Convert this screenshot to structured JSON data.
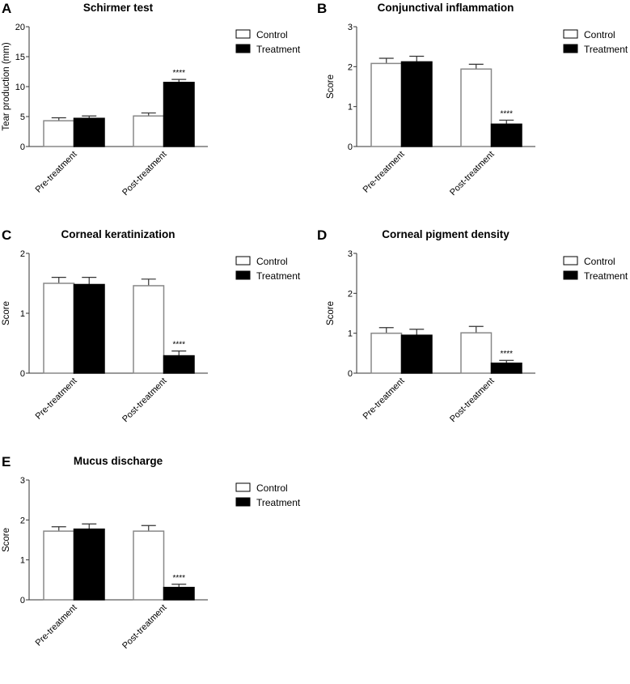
{
  "chart_data": [
    {
      "type": "bar",
      "letter": "A",
      "title": "Schirmer test",
      "ylabel": "Tear production (mm)",
      "ylim": [
        0,
        20
      ],
      "yticks": [
        0,
        5,
        10,
        15,
        20
      ],
      "categories": [
        "Pre-treatment",
        "Post-treatment"
      ],
      "series": [
        {
          "name": "Control",
          "color": "#ffffff",
          "values": [
            4.3,
            5.1
          ],
          "errors": [
            0.5,
            0.5
          ]
        },
        {
          "name": "Treatment",
          "color": "#000000",
          "values": [
            4.7,
            10.7
          ],
          "errors": [
            0.4,
            0.5
          ]
        }
      ],
      "annotations": [
        {
          "category": "Post-treatment",
          "series": "Treatment",
          "text": "****"
        }
      ],
      "legend": "top-right"
    },
    {
      "type": "bar",
      "letter": "B",
      "title": "Conjunctival inflammation",
      "ylabel": "Score",
      "ylim": [
        0,
        3
      ],
      "yticks": [
        0,
        1,
        2,
        3
      ],
      "categories": [
        "Pre-treatment",
        "Post-treatment"
      ],
      "series": [
        {
          "name": "Control",
          "color": "#ffffff",
          "values": [
            2.08,
            1.94
          ],
          "errors": [
            0.13,
            0.12
          ]
        },
        {
          "name": "Treatment",
          "color": "#000000",
          "values": [
            2.12,
            0.56
          ],
          "errors": [
            0.14,
            0.1
          ]
        }
      ],
      "annotations": [
        {
          "category": "Post-treatment",
          "series": "Treatment",
          "text": "****"
        }
      ],
      "legend": "top-right"
    },
    {
      "type": "bar",
      "letter": "C",
      "title": "Corneal keratinization",
      "ylabel": "Score",
      "ylim": [
        0,
        2
      ],
      "yticks": [
        0,
        1,
        2
      ],
      "categories": [
        "Pre-treatment",
        "Post-treatment"
      ],
      "series": [
        {
          "name": "Control",
          "color": "#ffffff",
          "values": [
            1.5,
            1.46
          ],
          "errors": [
            0.1,
            0.11
          ]
        },
        {
          "name": "Treatment",
          "color": "#000000",
          "values": [
            1.48,
            0.29
          ],
          "errors": [
            0.12,
            0.08
          ]
        }
      ],
      "annotations": [
        {
          "category": "Post-treatment",
          "series": "Treatment",
          "text": "****"
        }
      ],
      "legend": "top-right"
    },
    {
      "type": "bar",
      "letter": "D",
      "title": "Corneal pigment density",
      "ylabel": "Score",
      "ylim": [
        0,
        3
      ],
      "yticks": [
        0,
        1,
        2,
        3
      ],
      "categories": [
        "Pre-treatment",
        "Post-treatment"
      ],
      "series": [
        {
          "name": "Control",
          "color": "#ffffff",
          "values": [
            1.0,
            1.01
          ],
          "errors": [
            0.14,
            0.16
          ]
        },
        {
          "name": "Treatment",
          "color": "#000000",
          "values": [
            0.95,
            0.25
          ],
          "errors": [
            0.15,
            0.07
          ]
        }
      ],
      "annotations": [
        {
          "category": "Post-treatment",
          "series": "Treatment",
          "text": "****"
        }
      ],
      "legend": "top-right"
    },
    {
      "type": "bar",
      "letter": "E",
      "title": "Mucus discharge",
      "ylabel": "Score",
      "ylim": [
        0,
        3
      ],
      "yticks": [
        0,
        1,
        2,
        3
      ],
      "categories": [
        "Pre-treatment",
        "Post-treatment"
      ],
      "series": [
        {
          "name": "Control",
          "color": "#ffffff",
          "values": [
            1.72,
            1.72
          ],
          "errors": [
            0.11,
            0.14
          ]
        },
        {
          "name": "Treatment",
          "color": "#000000",
          "values": [
            1.77,
            0.31
          ],
          "errors": [
            0.13,
            0.08
          ]
        }
      ],
      "annotations": [
        {
          "category": "Post-treatment",
          "series": "Treatment",
          "text": "****"
        }
      ],
      "legend": "top-right"
    }
  ]
}
